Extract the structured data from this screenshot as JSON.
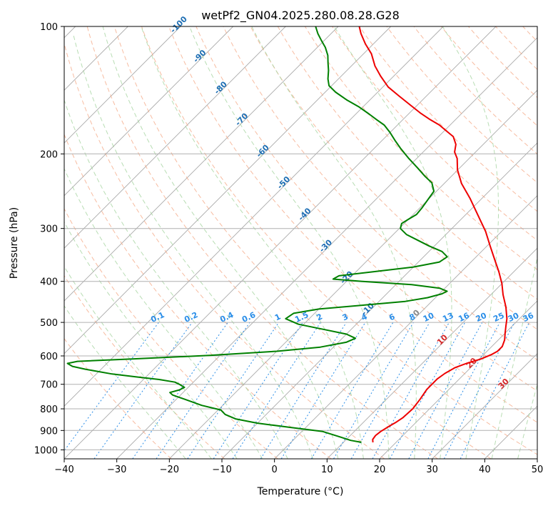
{
  "chart_data": {
    "type": "line",
    "subtype": "skew-t log-p sounding",
    "title": "wetPf2_GN04.2025.280.08.28.G28",
    "xlabel": "Temperature (°C)",
    "ylabel": "Pressure (hPa)",
    "xlim": [
      -40,
      50
    ],
    "ylim_hPa": [
      1050,
      100
    ],
    "x_ticks": [
      -40,
      -30,
      -20,
      -10,
      0,
      10,
      20,
      30,
      40,
      50
    ],
    "y_ticks": [
      100,
      200,
      300,
      400,
      500,
      600,
      700,
      800,
      900,
      1000
    ],
    "colors": {
      "temperature": "#ee0000",
      "dewpoint": "#008000",
      "dry_adiabat": "#f4a582",
      "moist_adiabat": "#a6d5a0",
      "mixing_ratio": "#2a8ee8",
      "isotherm": "#999999",
      "isotherm_label": "#1f6fb4",
      "positive_label": "#d62728",
      "zero_label": "#888888",
      "thetae": "#e6c9a8"
    },
    "isotherm_labels": [
      "-100",
      "-90",
      "-80",
      "-70",
      "-60",
      "-50",
      "-40",
      "-30",
      "-20",
      "-10",
      "0",
      "10",
      "20",
      "30",
      "40"
    ],
    "mixing_ratio_labels": [
      "0.1",
      "0.2",
      "0.4",
      "0.6",
      "1",
      "1.5",
      "2",
      "3",
      "4",
      "6",
      "8",
      "10",
      "13",
      "16",
      "20",
      "25",
      "30",
      "36"
    ],
    "series": [
      {
        "name": "Temperature",
        "points": [
          [
            15.6,
            960
          ],
          [
            15.0,
            945
          ],
          [
            14.8,
            925
          ],
          [
            15.0,
            905
          ],
          [
            15.6,
            880
          ],
          [
            16.2,
            860
          ],
          [
            16.6,
            840
          ],
          [
            16.8,
            800
          ],
          [
            16.4,
            760
          ],
          [
            15.8,
            720
          ],
          [
            15.8,
            680
          ],
          [
            16.2,
            660
          ],
          [
            17.0,
            640
          ],
          [
            18.4,
            625
          ],
          [
            20.3,
            610
          ],
          [
            21.5,
            595
          ],
          [
            22.0,
            585
          ],
          [
            22.0,
            570
          ],
          [
            21.2,
            550
          ],
          [
            20.0,
            530
          ],
          [
            18.8,
            510
          ],
          [
            17.6,
            490
          ],
          [
            15.2,
            460
          ],
          [
            12.3,
            430
          ],
          [
            10.0,
            405
          ],
          [
            7.2,
            380
          ],
          [
            4.0,
            355
          ],
          [
            0.6,
            330
          ],
          [
            -3.0,
            305
          ],
          [
            -7.4,
            280
          ],
          [
            -12.2,
            255
          ],
          [
            -16.7,
            235
          ],
          [
            -20.1,
            218
          ],
          [
            -22.3,
            205
          ],
          [
            -24.0,
            198
          ],
          [
            -25.2,
            190
          ],
          [
            -27.2,
            182
          ],
          [
            -29.8,
            176
          ],
          [
            -32.0,
            171
          ],
          [
            -34.8,
            166
          ],
          [
            -38.0,
            160
          ],
          [
            -41.0,
            154
          ],
          [
            -45.2,
            146
          ],
          [
            -49.0,
            139
          ],
          [
            -52.5,
            131
          ],
          [
            -55.5,
            124
          ],
          [
            -58.5,
            116
          ],
          [
            -61.5,
            110
          ],
          [
            -64.3,
            104
          ],
          [
            -66.0,
            100
          ]
        ]
      },
      {
        "name": "Dewpoint",
        "points": [
          [
            13.4,
            960
          ],
          [
            11.0,
            950
          ],
          [
            8.0,
            930
          ],
          [
            4.0,
            905
          ],
          [
            -3.0,
            885
          ],
          [
            -10.0,
            865
          ],
          [
            -15.0,
            845
          ],
          [
            -17.8,
            825
          ],
          [
            -19.5,
            805
          ],
          [
            -24.0,
            785
          ],
          [
            -28.3,
            760
          ],
          [
            -31.5,
            742
          ],
          [
            -32.5,
            732
          ],
          [
            -31.2,
            722
          ],
          [
            -30.7,
            712
          ],
          [
            -32.0,
            702
          ],
          [
            -33.5,
            692
          ],
          [
            -37.0,
            682
          ],
          [
            -42.0,
            672
          ],
          [
            -47.0,
            662
          ],
          [
            -53.0,
            645
          ],
          [
            -56.0,
            635
          ],
          [
            -57.5,
            625
          ],
          [
            -56.0,
            618
          ],
          [
            -46.0,
            610
          ],
          [
            -32.0,
            598
          ],
          [
            -20.0,
            585
          ],
          [
            -12.5,
            572
          ],
          [
            -8.5,
            557
          ],
          [
            -7.5,
            545
          ],
          [
            -10.0,
            533
          ],
          [
            -15.0,
            520
          ],
          [
            -21.0,
            505
          ],
          [
            -24.5,
            490
          ],
          [
            -24.0,
            476
          ],
          [
            -20.0,
            465
          ],
          [
            -12.0,
            455
          ],
          [
            -5.0,
            446
          ],
          [
            -1.5,
            437
          ],
          [
            0.5,
            428
          ],
          [
            1.0,
            422
          ],
          [
            -1.0,
            415
          ],
          [
            -7.0,
            407
          ],
          [
            -17.0,
            400
          ],
          [
            -23.0,
            395
          ],
          [
            -22.5,
            388
          ],
          [
            -17.0,
            380
          ],
          [
            -10.0,
            370
          ],
          [
            -6.0,
            360
          ],
          [
            -5.5,
            350
          ],
          [
            -7.5,
            340
          ],
          [
            -11.0,
            330
          ],
          [
            -14.2,
            320
          ],
          [
            -17.5,
            310
          ],
          [
            -19.8,
            300
          ],
          [
            -20.5,
            292
          ],
          [
            -20.0,
            285
          ],
          [
            -19.4,
            278
          ],
          [
            -19.6,
            268
          ],
          [
            -20.0,
            258
          ],
          [
            -20.5,
            245
          ],
          [
            -22.5,
            234
          ],
          [
            -25.0,
            226
          ],
          [
            -28.0,
            216
          ],
          [
            -31.5,
            205
          ],
          [
            -35.0,
            194
          ],
          [
            -37.5,
            186
          ],
          [
            -40.0,
            178
          ],
          [
            -42.5,
            171
          ],
          [
            -45.0,
            166
          ],
          [
            -47.5,
            161
          ],
          [
            -50.7,
            155
          ],
          [
            -54.5,
            149
          ],
          [
            -58.0,
            143
          ],
          [
            -60.5,
            138
          ],
          [
            -62.0,
            133
          ],
          [
            -63.5,
            127
          ],
          [
            -65.0,
            122
          ],
          [
            -66.5,
            117
          ],
          [
            -68.5,
            112
          ],
          [
            -70.5,
            108
          ],
          [
            -72.5,
            104
          ],
          [
            -74.3,
            100
          ]
        ]
      }
    ]
  }
}
